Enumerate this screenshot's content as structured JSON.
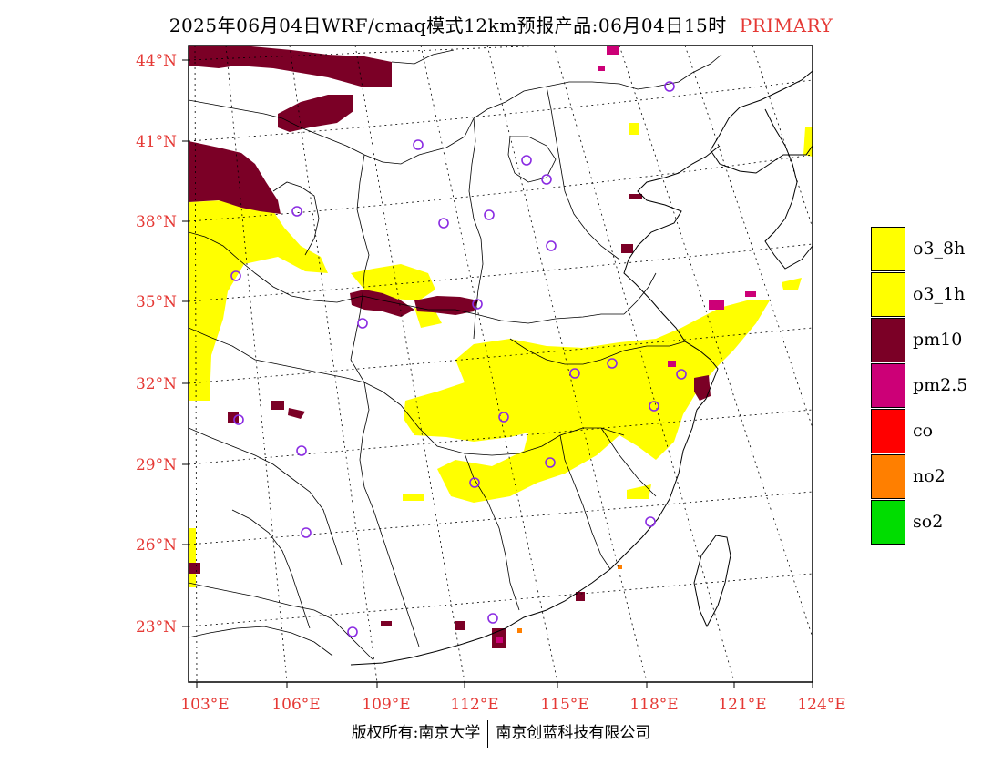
{
  "title": {
    "main": "2025年06月04日WRF/cmaq模式12km预报产品:06月04日15时",
    "tag": "PRIMARY"
  },
  "map": {
    "lat_labels": [
      "44°N",
      "41°N",
      "38°N",
      "35°N",
      "32°N",
      "29°N",
      "26°N",
      "23°N"
    ],
    "lon_labels": [
      "103°E",
      "106°E",
      "109°E",
      "112°E",
      "115°E",
      "118°E",
      "121°E",
      "124°E"
    ],
    "colors": {
      "o3_8h": "#ffff00",
      "o3_1h": "#ffff00",
      "pm10": "#7b0026",
      "pm2_5": "#cc0077",
      "co": "#ff0000",
      "no2": "#ff7f00",
      "so2": "#00dd00",
      "station": "#8a2be2",
      "axis_label": "#e53935"
    },
    "station_marker": "circle-icon"
  },
  "legend": [
    {
      "label": "o3_8h",
      "color": "#ffff00"
    },
    {
      "label": "o3_1h",
      "color": "#ffff00"
    },
    {
      "label": "pm10",
      "color": "#7b0026"
    },
    {
      "label": "pm2.5",
      "color": "#cc0077"
    },
    {
      "label": "co",
      "color": "#ff0000"
    },
    {
      "label": "no2",
      "color": "#ff7f00"
    },
    {
      "label": "so2",
      "color": "#00dd00"
    }
  ],
  "footer": {
    "left": "版权所有:南京大学",
    "right": "南京创蓝科技有限公司"
  }
}
